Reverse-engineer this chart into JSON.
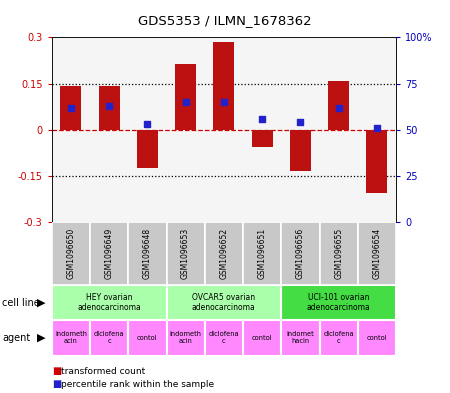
{
  "title": "GDS5353 / ILMN_1678362",
  "samples": [
    "GSM1096650",
    "GSM1096649",
    "GSM1096648",
    "GSM1096653",
    "GSM1096652",
    "GSM1096651",
    "GSM1096656",
    "GSM1096655",
    "GSM1096654"
  ],
  "bar_values": [
    0.142,
    0.143,
    -0.125,
    0.215,
    0.285,
    -0.055,
    -0.135,
    0.158,
    -0.205
  ],
  "dot_percentiles": [
    62,
    63,
    53,
    65,
    65,
    56,
    54,
    62,
    51
  ],
  "ylim": [
    -0.3,
    0.3
  ],
  "yticks_left": [
    -0.3,
    -0.15,
    0,
    0.15,
    0.3
  ],
  "ytick_left_labels": [
    "-0.3",
    "-0.15",
    "0",
    "0.15",
    "0.3"
  ],
  "yticks_right_pct": [
    0,
    25,
    50,
    75,
    100
  ],
  "ytick_right_labels": [
    "0",
    "25",
    "50",
    "75",
    "100%"
  ],
  "cell_lines": [
    {
      "label": "HEY ovarian\nadenocarcinoma",
      "start": 0,
      "end": 3,
      "color": "#AAFFAA"
    },
    {
      "label": "OVCAR5 ovarian\nadenocarcinoma",
      "start": 3,
      "end": 6,
      "color": "#AAFFAA"
    },
    {
      "label": "UCI-101 ovarian\nadenocarcinoma",
      "start": 6,
      "end": 9,
      "color": "#44DD44"
    }
  ],
  "agents": [
    {
      "label": "indometh\nacin",
      "start": 0,
      "end": 1,
      "color": "#FF88FF"
    },
    {
      "label": "diclofena\nc",
      "start": 1,
      "end": 2,
      "color": "#FF88FF"
    },
    {
      "label": "contol",
      "start": 2,
      "end": 3,
      "color": "#FF88FF"
    },
    {
      "label": "indometh\nacin",
      "start": 3,
      "end": 4,
      "color": "#FF88FF"
    },
    {
      "label": "diclofena\nc",
      "start": 4,
      "end": 5,
      "color": "#FF88FF"
    },
    {
      "label": "contol",
      "start": 5,
      "end": 6,
      "color": "#FF88FF"
    },
    {
      "label": "indomet\nhacin",
      "start": 6,
      "end": 7,
      "color": "#FF88FF"
    },
    {
      "label": "diclofena\nc",
      "start": 7,
      "end": 8,
      "color": "#FF88FF"
    },
    {
      "label": "contol",
      "start": 8,
      "end": 9,
      "color": "#FF88FF"
    }
  ],
  "bar_color": "#BB1111",
  "dot_color": "#2222CC",
  "sample_box_color": "#C8C8C8",
  "left_axis_color": "#CC0000",
  "right_axis_color": "#0000BB",
  "legend_labels": [
    "transformed count",
    "percentile rank within the sample"
  ],
  "legend_colors": [
    "#CC0000",
    "#2222CC"
  ],
  "chart_bg": "#F5F5F5"
}
